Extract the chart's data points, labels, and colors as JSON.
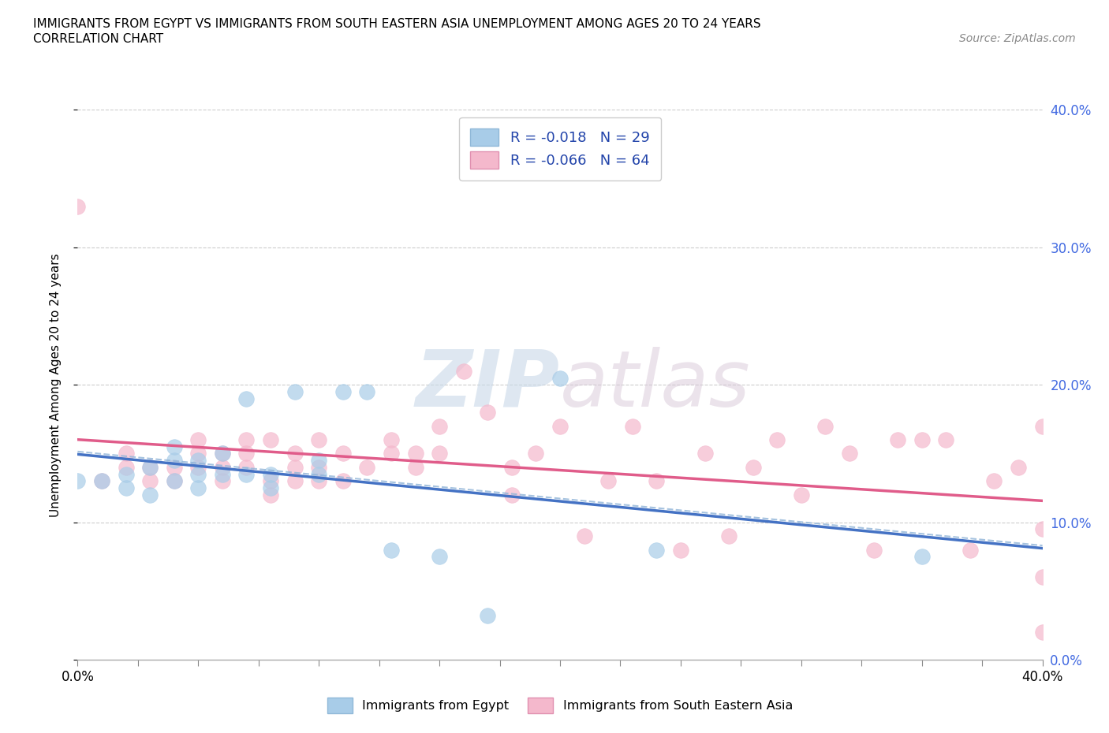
{
  "title_line1": "IMMIGRANTS FROM EGYPT VS IMMIGRANTS FROM SOUTH EASTERN ASIA UNEMPLOYMENT AMONG AGES 20 TO 24 YEARS",
  "title_line2": "CORRELATION CHART",
  "source_text": "Source: ZipAtlas.com",
  "ylabel": "Unemployment Among Ages 20 to 24 years",
  "xlim": [
    0.0,
    0.4
  ],
  "ylim": [
    0.0,
    0.4
  ],
  "watermark_zip": "ZIP",
  "watermark_atlas": "atlas",
  "legend_r1": "R = -0.018",
  "legend_n1": "N = 29",
  "legend_r2": "R = -0.066",
  "legend_n2": "N = 64",
  "color_egypt": "#a8cce8",
  "color_sea": "#f4b8cc",
  "color_trendline_egypt": "#4472C4",
  "color_trendline_sea": "#E05C8A",
  "egypt_x": [
    0.0,
    0.01,
    0.02,
    0.02,
    0.03,
    0.03,
    0.04,
    0.04,
    0.04,
    0.05,
    0.05,
    0.05,
    0.06,
    0.06,
    0.07,
    0.07,
    0.08,
    0.08,
    0.09,
    0.1,
    0.1,
    0.11,
    0.12,
    0.13,
    0.15,
    0.17,
    0.2,
    0.24,
    0.35
  ],
  "egypt_y": [
    0.13,
    0.13,
    0.125,
    0.135,
    0.12,
    0.14,
    0.13,
    0.145,
    0.155,
    0.125,
    0.135,
    0.145,
    0.135,
    0.15,
    0.19,
    0.135,
    0.125,
    0.135,
    0.195,
    0.135,
    0.145,
    0.195,
    0.195,
    0.08,
    0.075,
    0.032,
    0.205,
    0.08,
    0.075
  ],
  "sea_x": [
    0.0,
    0.01,
    0.02,
    0.02,
    0.03,
    0.03,
    0.04,
    0.04,
    0.05,
    0.05,
    0.05,
    0.06,
    0.06,
    0.06,
    0.07,
    0.07,
    0.07,
    0.08,
    0.08,
    0.08,
    0.09,
    0.09,
    0.09,
    0.1,
    0.1,
    0.1,
    0.11,
    0.11,
    0.12,
    0.13,
    0.13,
    0.14,
    0.14,
    0.15,
    0.15,
    0.16,
    0.17,
    0.18,
    0.18,
    0.19,
    0.2,
    0.21,
    0.22,
    0.23,
    0.24,
    0.25,
    0.26,
    0.27,
    0.28,
    0.29,
    0.3,
    0.31,
    0.32,
    0.33,
    0.34,
    0.35,
    0.36,
    0.37,
    0.38,
    0.39,
    0.4,
    0.4,
    0.4,
    0.4
  ],
  "sea_y": [
    0.33,
    0.13,
    0.14,
    0.15,
    0.14,
    0.13,
    0.13,
    0.14,
    0.14,
    0.15,
    0.16,
    0.13,
    0.14,
    0.15,
    0.14,
    0.15,
    0.16,
    0.12,
    0.13,
    0.16,
    0.13,
    0.14,
    0.15,
    0.13,
    0.14,
    0.16,
    0.13,
    0.15,
    0.14,
    0.16,
    0.15,
    0.14,
    0.15,
    0.15,
    0.17,
    0.21,
    0.18,
    0.14,
    0.12,
    0.15,
    0.17,
    0.09,
    0.13,
    0.17,
    0.13,
    0.08,
    0.15,
    0.09,
    0.14,
    0.16,
    0.12,
    0.17,
    0.15,
    0.08,
    0.16,
    0.16,
    0.16,
    0.08,
    0.13,
    0.14,
    0.06,
    0.17,
    0.02,
    0.095
  ]
}
